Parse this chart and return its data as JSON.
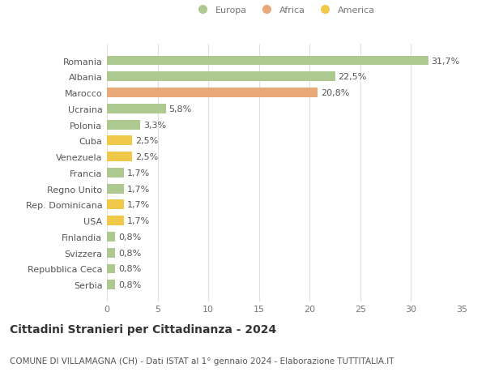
{
  "countries": [
    "Romania",
    "Albania",
    "Marocco",
    "Ucraina",
    "Polonia",
    "Cuba",
    "Venezuela",
    "Francia",
    "Regno Unito",
    "Rep. Dominicana",
    "USA",
    "Finlandia",
    "Svizzera",
    "Repubblica Ceca",
    "Serbia"
  ],
  "values": [
    31.7,
    22.5,
    20.8,
    5.8,
    3.3,
    2.5,
    2.5,
    1.7,
    1.7,
    1.7,
    1.7,
    0.8,
    0.8,
    0.8,
    0.8
  ],
  "labels": [
    "31,7%",
    "22,5%",
    "20,8%",
    "5,8%",
    "3,3%",
    "2,5%",
    "2,5%",
    "1,7%",
    "1,7%",
    "1,7%",
    "1,7%",
    "0,8%",
    "0,8%",
    "0,8%",
    "0,8%"
  ],
  "continents": [
    "Europa",
    "Europa",
    "Africa",
    "Europa",
    "Europa",
    "America",
    "America",
    "Europa",
    "Europa",
    "America",
    "America",
    "Europa",
    "Europa",
    "Europa",
    "Europa"
  ],
  "colors": {
    "Europa": "#adc990",
    "Africa": "#e8a878",
    "America": "#f0c84a"
  },
  "xlim": [
    0,
    35
  ],
  "xticks": [
    0,
    5,
    10,
    15,
    20,
    25,
    30,
    35
  ],
  "title": "Cittadini Stranieri per Cittadinanza - 2024",
  "subtitle": "COMUNE DI VILLAMAGNA (CH) - Dati ISTAT al 1° gennaio 2024 - Elaborazione TUTTITALIA.IT",
  "background_color": "#ffffff",
  "grid_color": "#e0e0e0",
  "bar_height": 0.6,
  "label_fontsize": 8,
  "tick_fontsize": 8,
  "title_fontsize": 10,
  "subtitle_fontsize": 7.5
}
